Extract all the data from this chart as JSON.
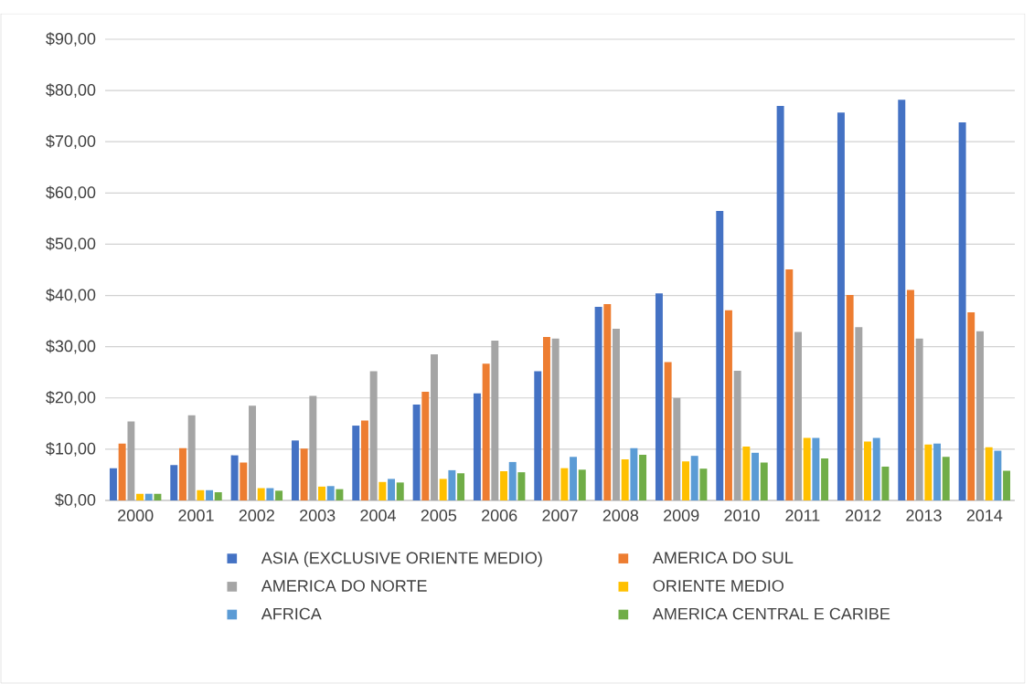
{
  "chart_data": {
    "type": "bar",
    "categories": [
      "2000",
      "2001",
      "2002",
      "2003",
      "2004",
      "2005",
      "2006",
      "2007",
      "2008",
      "2009",
      "2010",
      "2011",
      "2012",
      "2013",
      "2014"
    ],
    "series": [
      {
        "name": "ASIA (EXCLUSIVE ORIENTE MEDIO)",
        "color": "#4472c4",
        "values": [
          6.3,
          6.9,
          8.8,
          11.7,
          14.6,
          18.7,
          20.9,
          25.2,
          37.8,
          40.4,
          56.5,
          77.0,
          75.7,
          78.2,
          73.8
        ]
      },
      {
        "name": "AMERICA DO SUL",
        "color": "#ed7d31",
        "values": [
          11.1,
          10.2,
          7.4,
          10.1,
          15.6,
          21.2,
          26.7,
          31.9,
          38.3,
          27.0,
          37.1,
          45.1,
          40.1,
          41.1,
          36.7
        ]
      },
      {
        "name": "AMERICA DO NORTE",
        "color": "#a5a5a5",
        "values": [
          15.4,
          16.6,
          18.5,
          20.4,
          25.2,
          28.5,
          31.2,
          31.6,
          33.5,
          20.0,
          25.3,
          32.9,
          33.8,
          31.6,
          33.0
        ]
      },
      {
        "name": "ORIENTE MEDIO",
        "color": "#ffc000",
        "values": [
          1.3,
          2.0,
          2.4,
          2.7,
          3.6,
          4.2,
          5.7,
          6.3,
          8.0,
          7.6,
          10.5,
          12.2,
          11.5,
          10.9,
          10.4
        ]
      },
      {
        "name": "AFRICA",
        "color": "#5b9bd5",
        "values": [
          1.3,
          2.0,
          2.4,
          2.8,
          4.2,
          5.9,
          7.5,
          8.5,
          10.2,
          8.7,
          9.3,
          12.2,
          12.2,
          11.1,
          9.7
        ]
      },
      {
        "name": "AMERICA CENTRAL E CARIBE",
        "color": "#70ad47",
        "values": [
          1.3,
          1.6,
          1.9,
          2.2,
          3.5,
          5.3,
          5.5,
          6.0,
          8.9,
          6.2,
          7.4,
          8.2,
          6.6,
          8.5,
          5.8
        ]
      }
    ],
    "ylim": [
      0,
      90
    ],
    "yticks": [
      {
        "value": 0,
        "label": "$0,00"
      },
      {
        "value": 10,
        "label": "$10,00"
      },
      {
        "value": 20,
        "label": "$20,00"
      },
      {
        "value": 30,
        "label": "$30,00"
      },
      {
        "value": 40,
        "label": "$40,00"
      },
      {
        "value": 50,
        "label": "$50,00"
      },
      {
        "value": 60,
        "label": "$60,00"
      },
      {
        "value": 70,
        "label": "$70,00"
      },
      {
        "value": 80,
        "label": "$80,00"
      },
      {
        "value": 90,
        "label": "$90,00"
      }
    ],
    "grid": "y",
    "legend": "bottom"
  }
}
